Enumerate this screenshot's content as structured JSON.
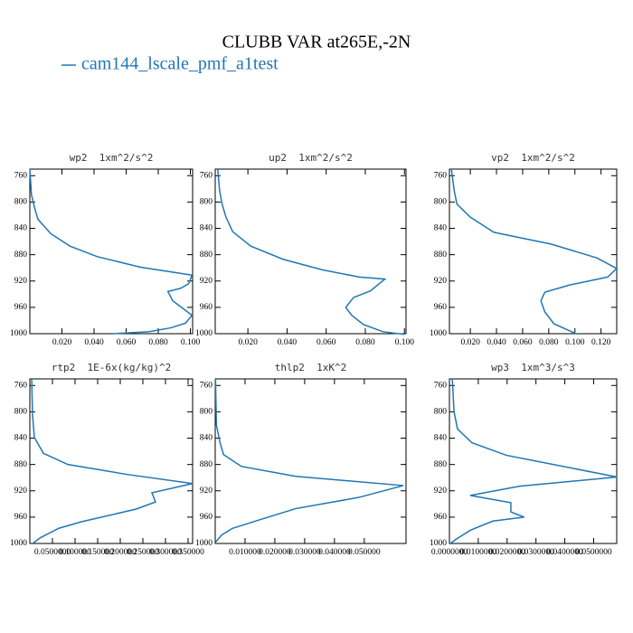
{
  "title": "CLUBB VAR at265E,-2N",
  "legend": {
    "name": "cam144_lscale_pmf_a1test",
    "color": "#1f77b4"
  },
  "chart_data": [
    {
      "type": "line",
      "title": "wp2  1xm^2/s^2",
      "y_inverted": true,
      "levels": [
        750,
        789,
        809,
        826,
        848,
        867,
        883,
        899,
        911,
        924,
        931,
        936,
        950,
        972,
        984,
        991,
        997,
        1000
      ],
      "series": [
        {
          "color": "#1f77b4",
          "values": [
            0,
            0.001,
            0.003,
            0.005,
            0.013,
            0.025,
            0.042,
            0.069,
            0.101,
            0.099,
            0.094,
            0.086,
            0.089,
            0.101,
            0.097,
            0.088,
            0.074,
            0.052
          ]
        }
      ],
      "xlim": [
        0,
        0.1014
      ],
      "ylim": [
        750,
        1000
      ],
      "xticks": [
        {
          "value": 0.02,
          "label": "0.020"
        },
        {
          "value": 0.04,
          "label": "0.040"
        },
        {
          "value": 0.06,
          "label": "0.060"
        },
        {
          "value": 0.08,
          "label": "0.080"
        },
        {
          "value": 0.1,
          "label": "0.100"
        }
      ],
      "yticks": [
        760,
        800,
        840,
        880,
        920,
        960,
        1000
      ]
    },
    {
      "type": "line",
      "title": "up2  1xm^2/s^2",
      "y_inverted": true,
      "levels": [
        750,
        782,
        803,
        823,
        845,
        867,
        887,
        903,
        914,
        917,
        935,
        945,
        960,
        972,
        986,
        997,
        1001
      ],
      "series": [
        {
          "color": "#1f77b4",
          "values": [
            0.0046,
            0.0055,
            0.0068,
            0.0088,
            0.0122,
            0.0215,
            0.038,
            0.058,
            0.077,
            0.09,
            0.0826,
            0.074,
            0.07,
            0.073,
            0.079,
            0.089,
            0.0999
          ]
        }
      ],
      "xlim": [
        0.0033,
        0.1008
      ],
      "ylim": [
        750,
        1000
      ],
      "xticks": [
        {
          "value": 0.02,
          "label": "0.020"
        },
        {
          "value": 0.04,
          "label": "0.040"
        },
        {
          "value": 0.06,
          "label": "0.060"
        },
        {
          "value": 0.08,
          "label": "0.080"
        },
        {
          "value": 0.1,
          "label": "0.100"
        }
      ],
      "yticks": [
        760,
        800,
        840,
        880,
        920,
        960,
        1000
      ]
    },
    {
      "type": "line",
      "title": "vp2  1xm^2/s^2",
      "y_inverted": true,
      "levels": [
        750,
        782,
        803,
        823,
        846,
        864,
        885,
        901,
        914,
        926,
        937,
        950,
        967,
        985,
        1001
      ],
      "series": [
        {
          "color": "#1f77b4",
          "values": [
            0.0055,
            0.0076,
            0.0097,
            0.02,
            0.038,
            0.082,
            0.117,
            0.132,
            0.125,
            0.096,
            0.077,
            0.074,
            0.077,
            0.084,
            0.102
          ]
        }
      ],
      "xlim": [
        0.004,
        0.132
      ],
      "ylim": [
        750,
        1000
      ],
      "xticks": [
        {
          "value": 0.02,
          "label": "0.020"
        },
        {
          "value": 0.04,
          "label": "0.040"
        },
        {
          "value": 0.06,
          "label": "0.060"
        },
        {
          "value": 0.08,
          "label": "0.080"
        },
        {
          "value": 0.1,
          "label": "0.100"
        },
        {
          "value": 0.12,
          "label": "0.120"
        }
      ],
      "yticks": [
        760,
        800,
        840,
        880,
        920,
        960,
        1000
      ]
    },
    {
      "type": "line",
      "title": "rtp2  1E-6x(kg/kg)^2",
      "y_inverted": true,
      "levels": [
        750,
        805,
        839,
        863,
        880,
        895,
        909,
        923,
        937,
        948,
        967,
        977,
        991,
        999
      ],
      "series": [
        {
          "color": "#1f77b4",
          "values": [
            0.004,
            0.006,
            0.01,
            0.03,
            0.084,
            0.214,
            0.36,
            0.27,
            0.278,
            0.234,
            0.114,
            0.064,
            0.024,
            0.008
          ]
        }
      ],
      "xlim": [
        0,
        0.36
      ],
      "ylim": [
        750,
        1000
      ],
      "xticks": [
        {
          "value": 0.05,
          "label": "0.0500000"
        },
        {
          "value": 0.1,
          "label": "0.100000"
        },
        {
          "value": 0.15,
          "label": "0.150000"
        },
        {
          "value": 0.2,
          "label": "0.200000"
        },
        {
          "value": 0.25,
          "label": "0.250000"
        },
        {
          "value": 0.3,
          "label": "0.300000"
        },
        {
          "value": 0.35,
          "label": "0.350000"
        }
      ],
      "yticks": [
        760,
        800,
        840,
        880,
        920,
        960,
        1000
      ]
    },
    {
      "type": "line",
      "title": "thlp2  1xK^2",
      "y_inverted": true,
      "levels": [
        750,
        820,
        847,
        865,
        883,
        898,
        912,
        930,
        947,
        964,
        977,
        987,
        998
      ],
      "series": [
        {
          "color": "#1f77b4",
          "values": [
            0.0001,
            0.0004,
            0.0016,
            0.0028,
            0.0088,
            0.027,
            0.0631,
            0.0482,
            0.027,
            0.0149,
            0.0058,
            0.0022,
            0.0001
          ]
        }
      ],
      "xlim": [
        0,
        0.064
      ],
      "ylim": [
        750,
        1000
      ],
      "xticks": [
        {
          "value": 0.01,
          "label": "0.010000"
        },
        {
          "value": 0.02,
          "label": "0.020000"
        },
        {
          "value": 0.03,
          "label": "0.030000"
        },
        {
          "value": 0.04,
          "label": "0.040000"
        },
        {
          "value": 0.05,
          "label": "0.050000"
        }
      ],
      "yticks": [
        760,
        800,
        840,
        880,
        920,
        960,
        1000
      ]
    },
    {
      "type": "line",
      "title": "wp3  1xm^3/s^3",
      "y_inverted": true,
      "levels": [
        750,
        800,
        826,
        847,
        866,
        899,
        913,
        927,
        938,
        952,
        960,
        966,
        980,
        993,
        1001
      ],
      "series": [
        {
          "color": "#1f77b4",
          "values": [
            0.001,
            0.0016,
            0.0028,
            0.0078,
            0.0197,
            0.0581,
            0.0244,
            0.0072,
            0.0213,
            0.0213,
            0.0259,
            0.015,
            0.0072,
            0.0025,
            0
          ]
        }
      ],
      "xlim": [
        0,
        0.058
      ],
      "ylim": [
        750,
        1000
      ],
      "xticks": [
        {
          "value": 0,
          "label": "0.0000000"
        },
        {
          "value": 0.01,
          "label": "0.0100000"
        },
        {
          "value": 0.02,
          "label": "0.0200000"
        },
        {
          "value": 0.03,
          "label": "0.0300000"
        },
        {
          "value": 0.04,
          "label": "0.0400000"
        },
        {
          "value": 0.05,
          "label": "0.0500000"
        }
      ],
      "yticks": [
        760,
        800,
        840,
        880,
        920,
        960,
        1000
      ]
    }
  ]
}
